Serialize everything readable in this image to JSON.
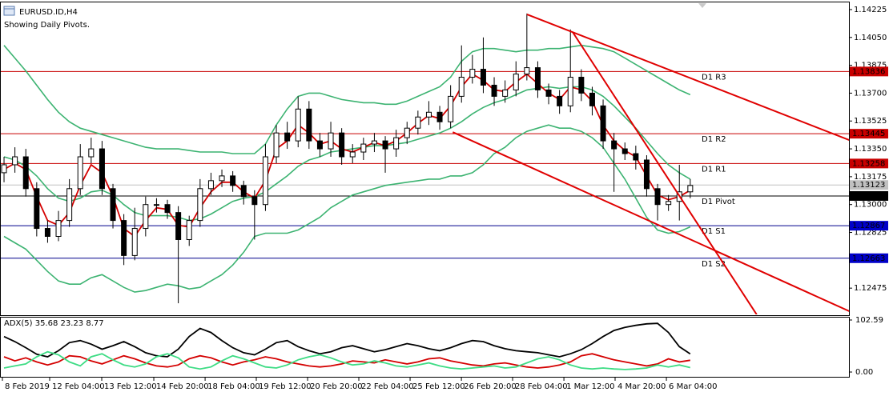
{
  "chart_data": [
    {
      "type": "candlestick",
      "title": "EURUSD.ID,H4",
      "subtitle": "Showing Daily Pivots.",
      "xlim": [
        -0.37,
        77.57
      ],
      "ylim": [
        1.1231,
        1.1427
      ],
      "yticks": [
        1.14225,
        {
          "value": 1.1405,
          "label": "1.14050"
        },
        1.13875,
        {
          "value": 1.137,
          "label": "1.13700"
        },
        1.13525,
        {
          "value": 1.1335,
          "label": "1.13350"
        },
        1.13175,
        {
          "value": 1.13,
          "label": "1.13000"
        },
        1.12825,
        {
          "value": 1.1265,
          "label": "1.12650"
        },
        1.12475
      ],
      "xticks": [
        {
          "value": -0.15,
          "label": "8 Feb 2019"
        },
        {
          "value": 4.19,
          "label": "12 Feb 04:00"
        },
        {
          "value": 8.97,
          "label": "13 Feb 12:00"
        },
        {
          "value": 13.75,
          "label": "14 Feb 20:00"
        },
        {
          "value": 18.46,
          "label": "18 Feb 04:00"
        },
        {
          "value": 23.16,
          "label": "19 Feb 12:00"
        },
        {
          "value": 27.87,
          "label": "20 Feb 20:00"
        },
        {
          "value": 32.57,
          "label": "22 Feb 04:00"
        },
        {
          "value": 37.28,
          "label": "25 Feb 12:00"
        },
        {
          "value": 41.99,
          "label": "26 Feb 20:00"
        },
        {
          "value": 46.69,
          "label": "28 Feb 04:00"
        },
        {
          "value": 51.4,
          "label": "1 Mar 12:00"
        },
        {
          "value": 56.1,
          "label": "4 Mar 20:00"
        },
        {
          "value": 60.81,
          "label": "6 Mar 04:00"
        }
      ],
      "open": [
        1.132,
        1.1325,
        1.133,
        1.131,
        1.1285,
        1.128,
        1.129,
        1.131,
        1.133,
        1.1335,
        1.131,
        1.129,
        1.1268,
        1.1285,
        1.13,
        1.13,
        1.1295,
        1.1278,
        1.129,
        1.131,
        1.1315,
        1.1318,
        1.1312,
        1.1305,
        1.13,
        1.133,
        1.1345,
        1.134,
        1.136,
        1.134,
        1.1335,
        1.1345,
        1.133,
        1.1333,
        1.1338,
        1.134,
        1.1335,
        1.1342,
        1.1348,
        1.1355,
        1.1358,
        1.1352,
        1.1368,
        1.138,
        1.1385,
        1.1375,
        1.1368,
        1.1372,
        1.1382,
        1.1386,
        1.1372,
        1.1368,
        1.1362,
        1.138,
        1.137,
        1.1362,
        1.134,
        1.1335,
        1.1332,
        1.1328,
        1.131,
        1.13,
        1.1302,
        1.1308
      ],
      "high": [
        1.133,
        1.1336,
        1.1335,
        1.1314,
        1.129,
        1.1296,
        1.1316,
        1.1338,
        1.1342,
        1.134,
        1.1313,
        1.1294,
        1.1298,
        1.1305,
        1.1304,
        1.1303,
        1.1299,
        1.1293,
        1.1316,
        1.132,
        1.1322,
        1.1321,
        1.1315,
        1.1309,
        1.1338,
        1.135,
        1.1352,
        1.1368,
        1.1365,
        1.1345,
        1.1352,
        1.1348,
        1.1338,
        1.1342,
        1.1345,
        1.1343,
        1.1347,
        1.1352,
        1.1359,
        1.1365,
        1.1362,
        1.1375,
        1.14,
        1.1394,
        1.1405,
        1.138,
        1.1378,
        1.139,
        1.142,
        1.139,
        1.1376,
        1.1372,
        1.141,
        1.1385,
        1.1374,
        1.1366,
        1.1345,
        1.1339,
        1.1337,
        1.1331,
        1.1313,
        1.1306,
        1.1325,
        1.1316
      ],
      "low": [
        1.1314,
        1.132,
        1.1305,
        1.128,
        1.1276,
        1.1277,
        1.1286,
        1.1306,
        1.1326,
        1.1306,
        1.1285,
        1.1262,
        1.1265,
        1.128,
        1.1295,
        1.1291,
        1.1238,
        1.1274,
        1.1286,
        1.1306,
        1.1311,
        1.1308,
        1.13,
        1.1278,
        1.1296,
        1.1326,
        1.1335,
        1.1336,
        1.1335,
        1.133,
        1.133,
        1.1325,
        1.1326,
        1.1328,
        1.1333,
        1.132,
        1.133,
        1.1338,
        1.1344,
        1.135,
        1.1347,
        1.1348,
        1.1364,
        1.1376,
        1.137,
        1.1362,
        1.1364,
        1.1368,
        1.1378,
        1.1367,
        1.1363,
        1.1357,
        1.1358,
        1.1365,
        1.1356,
        1.1335,
        1.1308,
        1.1328,
        1.1322,
        1.1305,
        1.129,
        1.1296,
        1.129,
        1.1304
      ],
      "close": [
        1.1325,
        1.133,
        1.131,
        1.1285,
        1.128,
        1.129,
        1.131,
        1.133,
        1.1335,
        1.131,
        1.129,
        1.1268,
        1.1285,
        1.13,
        1.13,
        1.1295,
        1.1278,
        1.129,
        1.131,
        1.1315,
        1.1318,
        1.1312,
        1.1305,
        1.13,
        1.133,
        1.1345,
        1.134,
        1.136,
        1.134,
        1.1335,
        1.1345,
        1.133,
        1.1333,
        1.1338,
        1.134,
        1.1335,
        1.1342,
        1.1348,
        1.1355,
        1.1358,
        1.1352,
        1.1368,
        1.138,
        1.1385,
        1.1375,
        1.1368,
        1.1372,
        1.1382,
        1.1386,
        1.1372,
        1.1368,
        1.1362,
        1.138,
        1.137,
        1.1362,
        1.134,
        1.1335,
        1.1332,
        1.1328,
        1.131,
        1.13,
        1.1302,
        1.1308,
        1.1312
      ],
      "bull_color": "#ffffff",
      "bear_color": "#000000",
      "ma": {
        "color": "#d40000",
        "values": [
          1.1322,
          1.1326,
          1.1322,
          1.1305,
          1.129,
          1.1287,
          1.1295,
          1.1312,
          1.1325,
          1.132,
          1.1305,
          1.1285,
          1.128,
          1.129,
          1.1298,
          1.1297,
          1.1287,
          1.1286,
          1.1298,
          1.1308,
          1.1314,
          1.1314,
          1.1308,
          1.1304,
          1.1315,
          1.1335,
          1.134,
          1.135,
          1.1345,
          1.1338,
          1.134,
          1.1335,
          1.1333,
          1.1336,
          1.1339,
          1.1337,
          1.134,
          1.1345,
          1.1351,
          1.1356,
          1.1354,
          1.1362,
          1.1374,
          1.1382,
          1.1378,
          1.1372,
          1.1371,
          1.1377,
          1.1382,
          1.1376,
          1.137,
          1.1366,
          1.1374,
          1.1372,
          1.1365,
          1.135,
          1.134,
          1.1334,
          1.133,
          1.1318,
          1.1306,
          1.1303,
          1.1305,
          1.1309
        ]
      },
      "bands": {
        "color": "#3cb371",
        "upper": [
          1.14,
          1.1392,
          1.1384,
          1.1375,
          1.1366,
          1.1358,
          1.1352,
          1.1348,
          1.1346,
          1.1344,
          1.1342,
          1.134,
          1.1338,
          1.1336,
          1.1335,
          1.1335,
          1.1335,
          1.1334,
          1.1333,
          1.1333,
          1.1333,
          1.1332,
          1.1332,
          1.1332,
          1.1338,
          1.135,
          1.136,
          1.1368,
          1.137,
          1.137,
          1.1368,
          1.1366,
          1.1365,
          1.1364,
          1.1364,
          1.1363,
          1.1363,
          1.1365,
          1.1368,
          1.1371,
          1.1374,
          1.138,
          1.139,
          1.1396,
          1.1398,
          1.1398,
          1.1397,
          1.1396,
          1.1397,
          1.1397,
          1.1398,
          1.1398,
          1.1399,
          1.14,
          1.1399,
          1.1398,
          1.1396,
          1.1392,
          1.1388,
          1.1384,
          1.138,
          1.1376,
          1.1372,
          1.1369
        ],
        "middle": [
          1.133,
          1.1328,
          1.1324,
          1.1318,
          1.131,
          1.1304,
          1.1302,
          1.1304,
          1.1308,
          1.1309,
          1.1306,
          1.13,
          1.1295,
          1.1293,
          1.1293,
          1.1293,
          1.1292,
          1.129,
          1.1291,
          1.1294,
          1.1298,
          1.1302,
          1.1304,
          1.1305,
          1.1308,
          1.1313,
          1.1318,
          1.1324,
          1.1328,
          1.133,
          1.1333,
          1.1334,
          1.1335,
          1.1336,
          1.1337,
          1.1337,
          1.1338,
          1.1339,
          1.1341,
          1.1343,
          1.1345,
          1.1348,
          1.1352,
          1.1357,
          1.1361,
          1.1364,
          1.1366,
          1.1369,
          1.1372,
          1.1373,
          1.1374,
          1.1373,
          1.1374,
          1.1374,
          1.1372,
          1.1368,
          1.1362,
          1.1355,
          1.1348,
          1.134,
          1.1332,
          1.1325,
          1.132,
          1.1316
        ],
        "lower": [
          1.128,
          1.1276,
          1.1272,
          1.1265,
          1.1258,
          1.1252,
          1.125,
          1.125,
          1.1254,
          1.1256,
          1.1252,
          1.1248,
          1.1245,
          1.1246,
          1.1248,
          1.125,
          1.1249,
          1.1247,
          1.1248,
          1.1252,
          1.1256,
          1.1262,
          1.127,
          1.128,
          1.1282,
          1.1282,
          1.1282,
          1.1284,
          1.1288,
          1.1292,
          1.1298,
          1.1302,
          1.1306,
          1.1308,
          1.131,
          1.1312,
          1.1313,
          1.1314,
          1.1315,
          1.1316,
          1.1316,
          1.1318,
          1.1318,
          1.132,
          1.1325,
          1.1332,
          1.1336,
          1.1342,
          1.1346,
          1.1348,
          1.135,
          1.1348,
          1.1348,
          1.1346,
          1.1342,
          1.1336,
          1.1326,
          1.1316,
          1.1304,
          1.1292,
          1.1284,
          1.1282,
          1.1283,
          1.1286
        ]
      },
      "trendlines": [
        {
          "color": "#e00000",
          "x": [
            48.0,
            77.6
          ],
          "y": [
            1.14195,
            1.13405
          ]
        },
        {
          "color": "#e00000",
          "x": [
            52.2,
            69.1
          ],
          "y": [
            1.14084,
            1.12309
          ]
        },
        {
          "color": "#e00000",
          "x": [
            41.2,
            77.6
          ],
          "y": [
            1.13455,
            1.1233
          ]
        }
      ],
      "levels": [
        {
          "name": "D1 R3",
          "value": 1.13836,
          "color": "#c80000"
        },
        {
          "name": "D1 R2",
          "value": 1.13445,
          "color": "#c80000"
        },
        {
          "name": "D1 R1",
          "value": 1.13258,
          "color": "#c80000"
        },
        {
          "name": "D1 Pivot",
          "value": 1.13054,
          "color": "#000000"
        },
        {
          "name": "D1 S1",
          "value": 1.12867,
          "color": "#00008b"
        },
        {
          "name": "D1 S2",
          "value": 1.12663,
          "color": "#00008b"
        }
      ],
      "current": {
        "value": 1.13123,
        "color": "#c0c0c0"
      }
    },
    {
      "type": "line",
      "title": "ADX(5) 35.68 23.23 8.77",
      "ylim": [
        -11,
        108.9
      ],
      "yticks": [
        102.59,
        {
          "value": 0,
          "label": "0.00"
        }
      ],
      "series": [
        {
          "color": "#000000",
          "values": [
            70,
            60,
            48,
            35,
            30,
            42,
            58,
            62,
            55,
            45,
            52,
            60,
            50,
            38,
            32,
            30,
            45,
            70,
            86,
            78,
            62,
            48,
            38,
            34,
            45,
            58,
            62,
            50,
            42,
            36,
            40,
            48,
            52,
            46,
            40,
            44,
            50,
            56,
            52,
            46,
            42,
            48,
            56,
            62,
            60,
            52,
            46,
            42,
            40,
            38,
            34,
            30,
            36,
            44,
            56,
            70,
            82,
            88,
            92,
            95,
            96,
            78,
            50,
            35.68
          ]
        },
        {
          "color": "#d40000",
          "values": [
            30,
            22,
            28,
            20,
            14,
            20,
            32,
            30,
            22,
            16,
            24,
            32,
            26,
            18,
            12,
            10,
            14,
            26,
            32,
            28,
            20,
            14,
            20,
            24,
            30,
            26,
            20,
            16,
            12,
            10,
            12,
            16,
            22,
            20,
            18,
            24,
            20,
            16,
            20,
            26,
            28,
            22,
            18,
            14,
            12,
            16,
            18,
            14,
            10,
            8,
            10,
            14,
            20,
            32,
            36,
            30,
            24,
            20,
            16,
            12,
            16,
            26,
            20,
            23.23
          ]
        },
        {
          "color": "#3ddc84",
          "values": [
            8,
            12,
            16,
            30,
            40,
            34,
            20,
            12,
            30,
            36,
            24,
            14,
            10,
            16,
            30,
            36,
            28,
            10,
            6,
            10,
            22,
            32,
            26,
            18,
            10,
            8,
            14,
            24,
            30,
            34,
            28,
            20,
            14,
            16,
            22,
            18,
            12,
            10,
            14,
            18,
            12,
            8,
            6,
            8,
            10,
            12,
            8,
            10,
            18,
            26,
            30,
            24,
            14,
            8,
            6,
            8,
            6,
            5,
            6,
            8,
            14,
            10,
            14,
            8.77
          ]
        }
      ]
    }
  ]
}
